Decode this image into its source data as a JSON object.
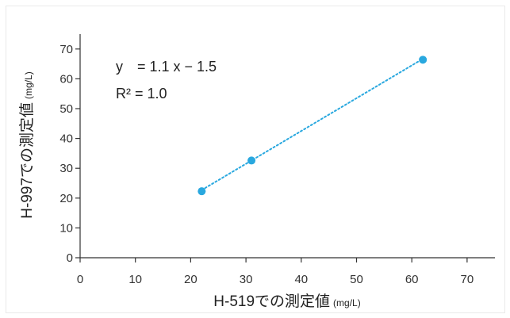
{
  "chart_data": {
    "type": "scatter",
    "title": "",
    "xlabel": "H-519での測定値",
    "xlabel_unit": "(mg/L)",
    "ylabel": "H-997での測定値",
    "ylabel_unit": "(mg/L)",
    "xlim": [
      0,
      75
    ],
    "ylim": [
      0,
      75
    ],
    "xticks": [
      0,
      10,
      20,
      30,
      40,
      50,
      60,
      70
    ],
    "yticks": [
      0,
      10,
      20,
      30,
      40,
      50,
      60,
      70
    ],
    "grid": false,
    "series": [
      {
        "points": [
          {
            "x": 22,
            "y": 22.3
          },
          {
            "x": 31,
            "y": 32.6
          },
          {
            "x": 62,
            "y": 66.4
          }
        ],
        "color": "#29a8df"
      }
    ],
    "trendline": {
      "style": "dotted",
      "color": "#29a8df",
      "x_range": [
        22,
        62
      ],
      "slope": 1.1,
      "intercept": -1.5
    },
    "annotations": {
      "equation": "y　= 1.1 x − 1.5",
      "r_squared": "R² = 1.0"
    }
  }
}
